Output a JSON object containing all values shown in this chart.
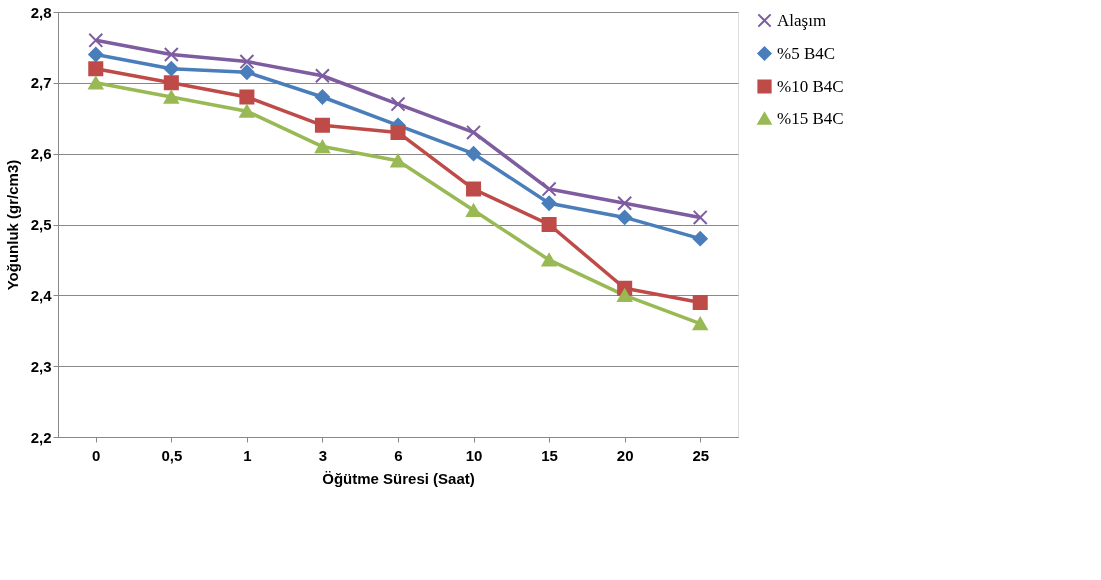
{
  "chart_data": {
    "type": "line",
    "xlabel": "Öğütme Süresi (Saat)",
    "ylabel": "Yoğunluk (gr/cm3)",
    "categories": [
      "0",
      "0,5",
      "1",
      "3",
      "6",
      "10",
      "15",
      "20",
      "25"
    ],
    "ylim": [
      2.2,
      2.8
    ],
    "yticks": [
      {
        "value": 2.2,
        "label": "2,2"
      },
      {
        "value": 2.3,
        "label": "2,3"
      },
      {
        "value": 2.4,
        "label": "2,4"
      },
      {
        "value": 2.5,
        "label": "2,5"
      },
      {
        "value": 2.6,
        "label": "2,6"
      },
      {
        "value": 2.7,
        "label": "2,7"
      },
      {
        "value": 2.8,
        "label": "2,8"
      }
    ],
    "grid": "y",
    "legend": "right",
    "series": [
      {
        "name": "Alaşım",
        "color": "#7e5ca0",
        "marker": "cross",
        "values": [
          2.76,
          2.74,
          2.73,
          2.71,
          2.67,
          2.63,
          2.55,
          2.53,
          2.51
        ]
      },
      {
        "name": "%5 B4C",
        "color": "#4a7ebb",
        "marker": "diamond",
        "values": [
          2.74,
          2.72,
          2.715,
          2.68,
          2.64,
          2.6,
          2.53,
          2.51,
          2.48
        ]
      },
      {
        "name": "%10 B4C",
        "color": "#be4b48",
        "marker": "square",
        "values": [
          2.72,
          2.7,
          2.68,
          2.64,
          2.63,
          2.55,
          2.5,
          2.41,
          2.39
        ]
      },
      {
        "name": "%15 B4C",
        "color": "#98b954",
        "marker": "triangle",
        "values": [
          2.7,
          2.68,
          2.66,
          2.61,
          2.59,
          2.52,
          2.45,
          2.4,
          2.36
        ]
      }
    ]
  }
}
